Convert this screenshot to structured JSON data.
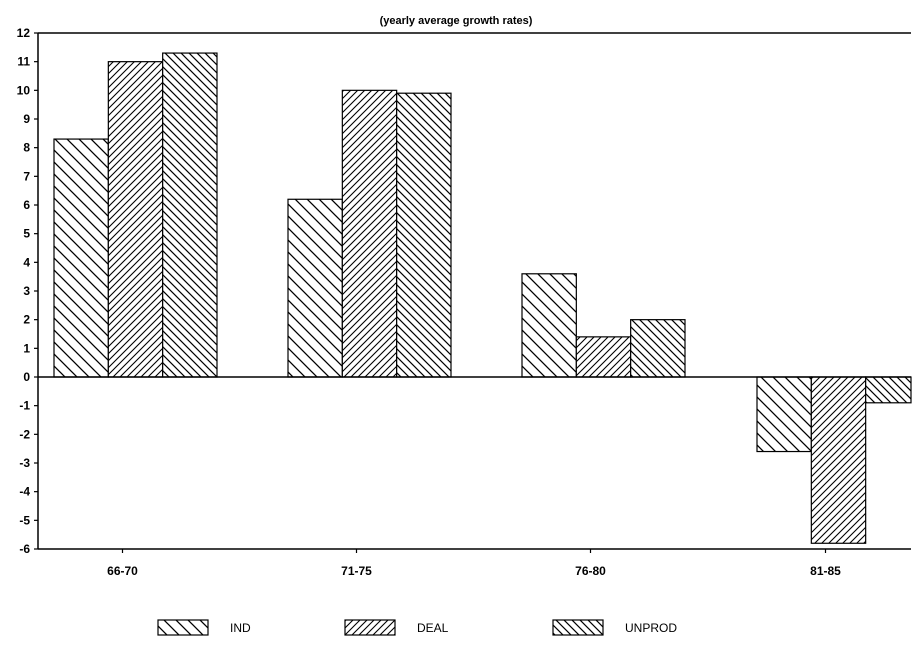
{
  "chart_data": {
    "type": "bar",
    "subtitle": "(yearly average growth rates)",
    "categories": [
      "66-70",
      "71-75",
      "76-80",
      "81-85"
    ],
    "series": [
      {
        "name": "IND",
        "pattern": "hatch-back-slash",
        "values": [
          8.3,
          6.2,
          3.6,
          -2.6
        ]
      },
      {
        "name": "DEAL",
        "pattern": "hatch-forward-slash",
        "values": [
          11.0,
          10.0,
          1.4,
          -5.8
        ]
      },
      {
        "name": "UNPROD",
        "pattern": "hatch-back-slash-dense",
        "values": [
          11.3,
          9.9,
          2.0,
          -0.9
        ]
      }
    ],
    "y_ticks": [
      12,
      11,
      10,
      9,
      8,
      7,
      6,
      5,
      4,
      3,
      2,
      1,
      0,
      -1,
      -2,
      -3,
      -4,
      -5,
      -6
    ],
    "ylim": [
      -6,
      12
    ],
    "grid": false,
    "legend_position": "bottom",
    "colors": {
      "stroke": "#000000",
      "fill": "#ffffff"
    }
  }
}
